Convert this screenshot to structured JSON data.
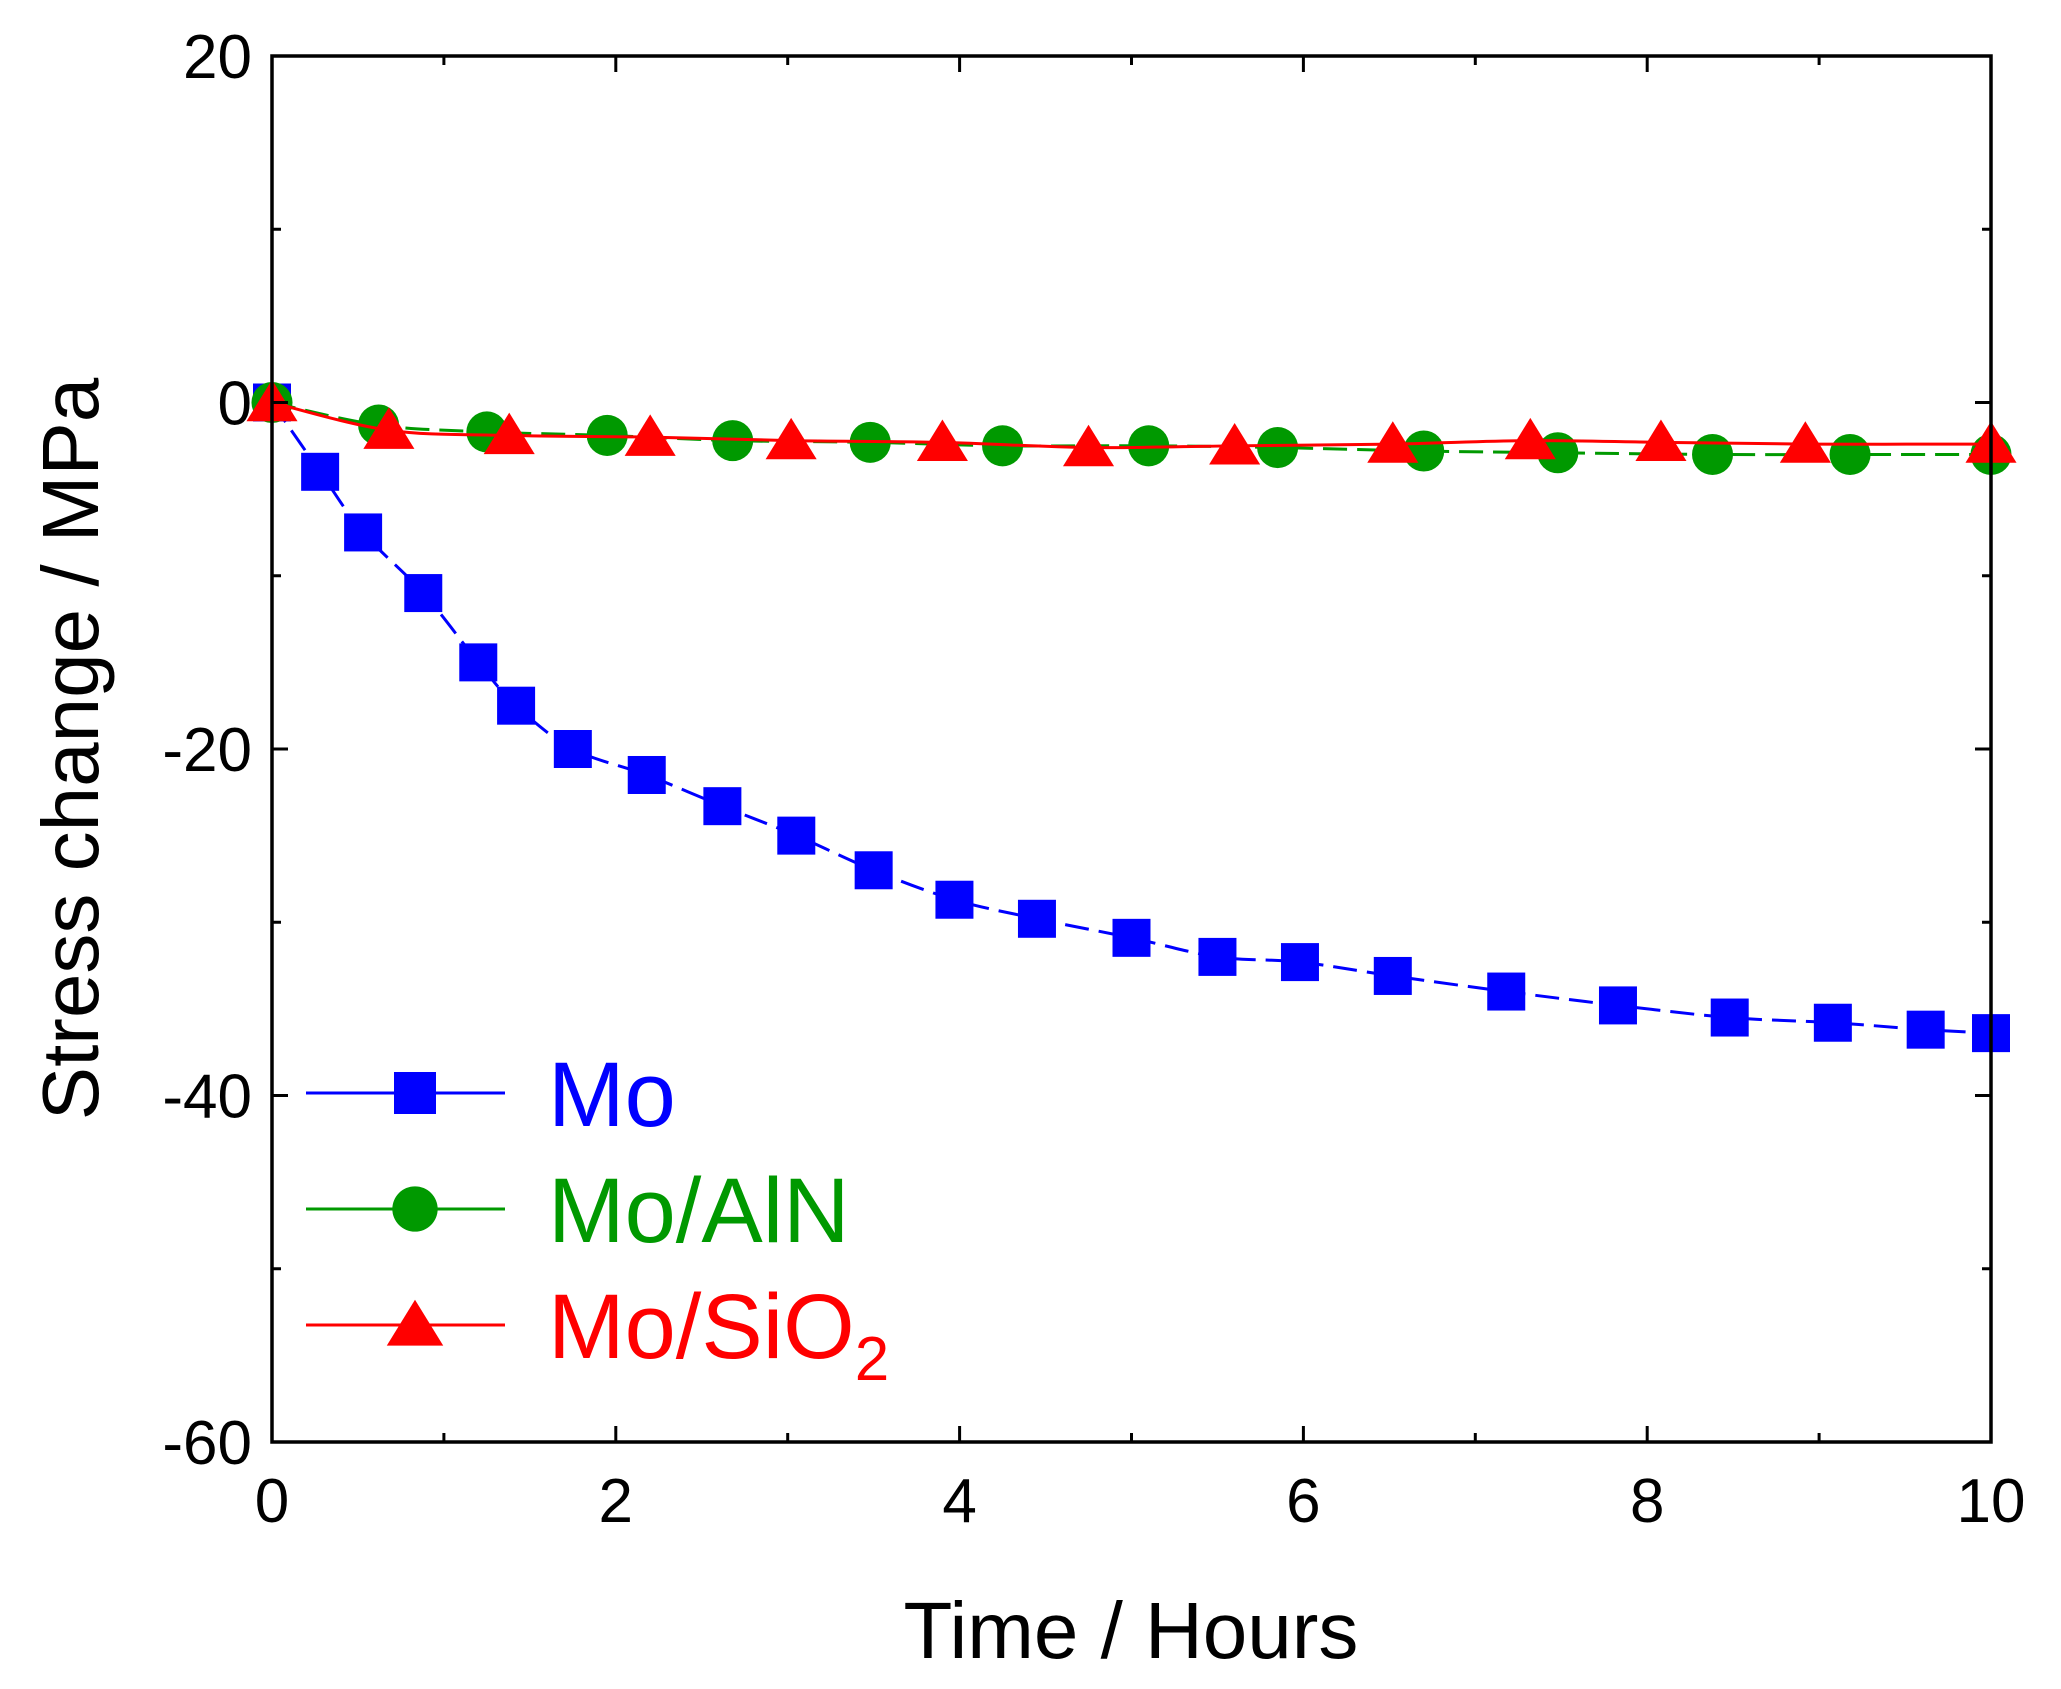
{
  "chart_data": {
    "type": "line",
    "title": "",
    "xlabel": "Time / Hours",
    "ylabel": "Stress change / MPa",
    "xlim": [
      0,
      10
    ],
    "ylim": [
      -60,
      20
    ],
    "xticks": [
      0,
      2,
      4,
      6,
      8,
      10
    ],
    "xtick_labels": [
      "0",
      "2",
      "4",
      "6",
      "8",
      "10"
    ],
    "yticks": [
      -60,
      -40,
      -20,
      0,
      20
    ],
    "ytick_labels": [
      "-60",
      "-40",
      "-20",
      "0",
      "20"
    ],
    "x_minor_step": 1,
    "y_minor_step": 10,
    "grid": false,
    "legend_position": "lower-left",
    "series": [
      {
        "name": "Mo",
        "label_main": "Mo",
        "label_sub": "",
        "color": "#0000ff",
        "marker": "square",
        "line_style": "dashed",
        "x": [
          0,
          0.28,
          0.53,
          0.88,
          1.2,
          1.42,
          1.75,
          2.18,
          2.62,
          3.05,
          3.5,
          3.97,
          4.45,
          5.0,
          5.5,
          5.98,
          6.52,
          7.18,
          7.83,
          8.48,
          9.08,
          9.62,
          10.0
        ],
        "y": [
          0,
          -4.0,
          -7.5,
          -11.0,
          -15.0,
          -17.5,
          -20.0,
          -21.5,
          -23.3,
          -25.0,
          -27.0,
          -28.7,
          -29.8,
          -30.9,
          -32.0,
          -32.3,
          -33.1,
          -34.0,
          -34.8,
          -35.5,
          -35.8,
          -36.2,
          -36.4
        ]
      },
      {
        "name": "Mo/AlN",
        "label_main": "Mo/AlN",
        "label_sub": "",
        "color": "#009900",
        "marker": "circle",
        "line_style": "dashed",
        "x": [
          0,
          0.62,
          1.25,
          1.95,
          2.68,
          3.48,
          4.25,
          5.1,
          5.85,
          6.7,
          7.48,
          8.38,
          9.18,
          10.0
        ],
        "y": [
          0,
          -1.3,
          -1.7,
          -1.9,
          -2.2,
          -2.3,
          -2.5,
          -2.5,
          -2.6,
          -2.8,
          -2.9,
          -3.0,
          -3.0,
          -3.0
        ]
      },
      {
        "name": "Mo/SiO2",
        "label_main": "Mo/SiO",
        "label_sub": "2",
        "color": "#ff0000",
        "marker": "triangle",
        "line_style": "solid",
        "x": [
          0,
          0.68,
          1.38,
          2.2,
          3.02,
          3.9,
          4.75,
          5.6,
          6.52,
          7.32,
          8.08,
          8.92,
          10.0
        ],
        "y": [
          0,
          -1.6,
          -1.9,
          -2.0,
          -2.2,
          -2.3,
          -2.6,
          -2.5,
          -2.4,
          -2.2,
          -2.3,
          -2.4,
          -2.4
        ]
      }
    ]
  }
}
